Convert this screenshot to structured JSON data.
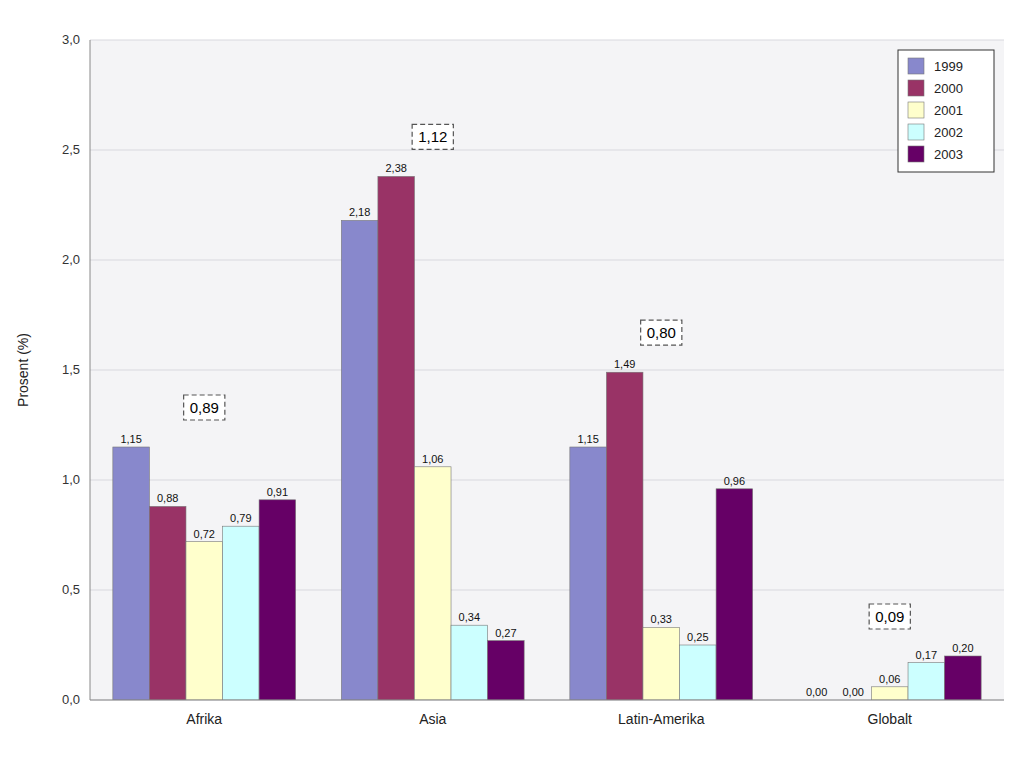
{
  "chart_data": {
    "type": "bar",
    "categories": [
      "Afrika",
      "Asia",
      "Latin-Amerika",
      "Globalt"
    ],
    "series": [
      {
        "name": "1999",
        "color": "#8888cc",
        "values": [
          1.15,
          2.18,
          1.15,
          0.0
        ],
        "value_labels": [
          "1,15",
          "2,18",
          "1,15",
          "0,00"
        ]
      },
      {
        "name": "2000",
        "color": "#993366",
        "values": [
          0.88,
          2.38,
          1.49,
          0.0
        ],
        "value_labels": [
          "0,88",
          "2,38",
          "1,49",
          "0,00"
        ]
      },
      {
        "name": "2001",
        "color": "#ffffcc",
        "values": [
          0.72,
          1.06,
          0.33,
          0.06
        ],
        "value_labels": [
          "0,72",
          "1,06",
          "0,33",
          "0,06"
        ]
      },
      {
        "name": "2002",
        "color": "#ccffff",
        "values": [
          0.79,
          0.34,
          0.25,
          0.17
        ],
        "value_labels": [
          "0,79",
          "0,34",
          "0,25",
          "0,17"
        ]
      },
      {
        "name": "2003",
        "color": "#660066",
        "values": [
          0.91,
          0.27,
          0.96,
          0.2
        ],
        "value_labels": [
          "0,91",
          "0,27",
          "0,96",
          "0,20"
        ]
      }
    ],
    "annotations": [
      {
        "category": "Afrika",
        "text": "0,89"
      },
      {
        "category": "Asia",
        "text": "1,12"
      },
      {
        "category": "Latin-Amerika",
        "text": "0,80"
      },
      {
        "category": "Globalt",
        "text": "0,09"
      }
    ],
    "ylabel": "Prosent (%)",
    "ylim": [
      0,
      3.0
    ],
    "yticks": [
      {
        "value": 0.0,
        "label": "0,0"
      },
      {
        "value": 0.5,
        "label": "0,5"
      },
      {
        "value": 1.0,
        "label": "1,0"
      },
      {
        "value": 1.5,
        "label": "1,5"
      },
      {
        "value": 2.0,
        "label": "2,0"
      },
      {
        "value": 2.5,
        "label": "2,5"
      },
      {
        "value": 3.0,
        "label": "3,0"
      }
    ],
    "grid": true,
    "legend": "upper right",
    "data_labels": true
  }
}
